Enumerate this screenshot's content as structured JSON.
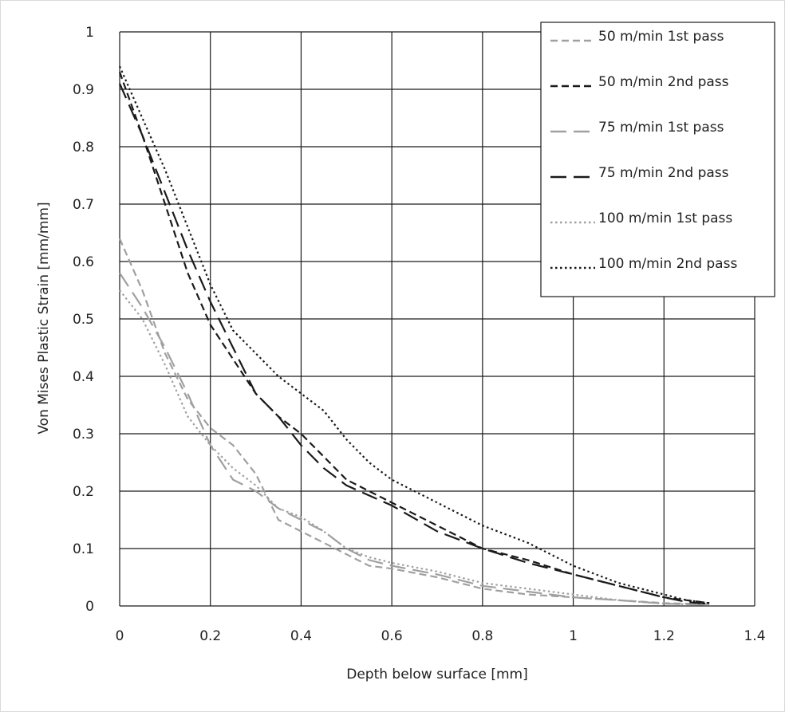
{
  "chart_data": {
    "type": "line",
    "title": "",
    "xlabel": "Depth below surface [mm]",
    "ylabel": "Von Mises Plastic Strain [mm/mm]",
    "xlim": [
      0,
      1.4
    ],
    "ylim": [
      0,
      1
    ],
    "xticks": [
      "0",
      "0.2",
      "0.4",
      "0.6",
      "0.8",
      "1",
      "1.2",
      "1.4"
    ],
    "yticks": [
      "0",
      "0.1",
      "0.2",
      "0.3",
      "0.4",
      "0.5",
      "0.6",
      "0.7",
      "0.8",
      "0.9",
      "1"
    ],
    "grid": true,
    "legend_position": "top-right",
    "series": [
      {
        "name": "50 m/min 1st pass",
        "color": "#a0a0a0",
        "style": "short-dash",
        "points": [
          [
            0,
            0.64
          ],
          [
            0.05,
            0.55
          ],
          [
            0.1,
            0.44
          ],
          [
            0.15,
            0.36
          ],
          [
            0.2,
            0.31
          ],
          [
            0.25,
            0.28
          ],
          [
            0.3,
            0.23
          ],
          [
            0.35,
            0.15
          ],
          [
            0.4,
            0.13
          ],
          [
            0.45,
            0.11
          ],
          [
            0.5,
            0.09
          ],
          [
            0.55,
            0.07
          ],
          [
            0.6,
            0.065
          ],
          [
            0.7,
            0.05
          ],
          [
            0.8,
            0.03
          ],
          [
            0.9,
            0.02
          ],
          [
            1.0,
            0.015
          ],
          [
            1.1,
            0.01
          ],
          [
            1.2,
            0.005
          ],
          [
            1.3,
            0.003
          ]
        ]
      },
      {
        "name": "50 m/min 2nd pass",
        "color": "#1a1a1a",
        "style": "short-dash",
        "points": [
          [
            0,
            0.93
          ],
          [
            0.05,
            0.82
          ],
          [
            0.1,
            0.7
          ],
          [
            0.15,
            0.58
          ],
          [
            0.2,
            0.49
          ],
          [
            0.25,
            0.43
          ],
          [
            0.3,
            0.37
          ],
          [
            0.35,
            0.33
          ],
          [
            0.4,
            0.3
          ],
          [
            0.45,
            0.26
          ],
          [
            0.5,
            0.22
          ],
          [
            0.6,
            0.18
          ],
          [
            0.7,
            0.14
          ],
          [
            0.8,
            0.1
          ],
          [
            0.9,
            0.08
          ],
          [
            1.0,
            0.055
          ],
          [
            1.1,
            0.035
          ],
          [
            1.2,
            0.015
          ],
          [
            1.25,
            0.01
          ],
          [
            1.3,
            0.005
          ]
        ]
      },
      {
        "name": "75 m/min 1st pass",
        "color": "#a0a0a0",
        "style": "long-dash",
        "points": [
          [
            0,
            0.58
          ],
          [
            0.05,
            0.52
          ],
          [
            0.1,
            0.45
          ],
          [
            0.15,
            0.37
          ],
          [
            0.2,
            0.28
          ],
          [
            0.25,
            0.22
          ],
          [
            0.3,
            0.2
          ],
          [
            0.35,
            0.17
          ],
          [
            0.4,
            0.15
          ],
          [
            0.45,
            0.13
          ],
          [
            0.5,
            0.1
          ],
          [
            0.55,
            0.08
          ],
          [
            0.6,
            0.07
          ],
          [
            0.7,
            0.055
          ],
          [
            0.8,
            0.035
          ],
          [
            0.9,
            0.025
          ],
          [
            1.0,
            0.015
          ],
          [
            1.1,
            0.01
          ],
          [
            1.2,
            0.004
          ],
          [
            1.3,
            0.002
          ]
        ]
      },
      {
        "name": "75 m/min 2nd pass",
        "color": "#1a1a1a",
        "style": "long-dash",
        "points": [
          [
            0,
            0.91
          ],
          [
            0.05,
            0.82
          ],
          [
            0.1,
            0.72
          ],
          [
            0.15,
            0.62
          ],
          [
            0.2,
            0.53
          ],
          [
            0.25,
            0.45
          ],
          [
            0.3,
            0.37
          ],
          [
            0.35,
            0.33
          ],
          [
            0.4,
            0.28
          ],
          [
            0.45,
            0.24
          ],
          [
            0.5,
            0.21
          ],
          [
            0.6,
            0.175
          ],
          [
            0.7,
            0.13
          ],
          [
            0.8,
            0.1
          ],
          [
            0.9,
            0.075
          ],
          [
            1.0,
            0.055
          ],
          [
            1.1,
            0.035
          ],
          [
            1.2,
            0.015
          ],
          [
            1.25,
            0.007
          ],
          [
            1.3,
            0.003
          ]
        ]
      },
      {
        "name": "100 m/min 1st pass",
        "color": "#a0a0a0",
        "style": "dotted",
        "points": [
          [
            0,
            0.55
          ],
          [
            0.05,
            0.5
          ],
          [
            0.1,
            0.42
          ],
          [
            0.15,
            0.33
          ],
          [
            0.2,
            0.28
          ],
          [
            0.25,
            0.24
          ],
          [
            0.3,
            0.21
          ],
          [
            0.35,
            0.17
          ],
          [
            0.4,
            0.155
          ],
          [
            0.45,
            0.13
          ],
          [
            0.5,
            0.1
          ],
          [
            0.55,
            0.085
          ],
          [
            0.6,
            0.075
          ],
          [
            0.7,
            0.06
          ],
          [
            0.8,
            0.04
          ],
          [
            0.9,
            0.03
          ],
          [
            1.0,
            0.02
          ],
          [
            1.1,
            0.01
          ],
          [
            1.2,
            0.004
          ],
          [
            1.3,
            0.002
          ]
        ]
      },
      {
        "name": "100 m/min 2nd pass",
        "color": "#1a1a1a",
        "style": "dotted",
        "points": [
          [
            0,
            0.94
          ],
          [
            0.05,
            0.85
          ],
          [
            0.1,
            0.76
          ],
          [
            0.15,
            0.66
          ],
          [
            0.2,
            0.56
          ],
          [
            0.25,
            0.48
          ],
          [
            0.3,
            0.44
          ],
          [
            0.35,
            0.4
          ],
          [
            0.4,
            0.37
          ],
          [
            0.45,
            0.34
          ],
          [
            0.5,
            0.29
          ],
          [
            0.55,
            0.25
          ],
          [
            0.6,
            0.22
          ],
          [
            0.7,
            0.18
          ],
          [
            0.8,
            0.14
          ],
          [
            0.9,
            0.11
          ],
          [
            1.0,
            0.07
          ],
          [
            1.1,
            0.04
          ],
          [
            1.2,
            0.02
          ],
          [
            1.25,
            0.01
          ],
          [
            1.3,
            0.005
          ]
        ]
      }
    ]
  }
}
